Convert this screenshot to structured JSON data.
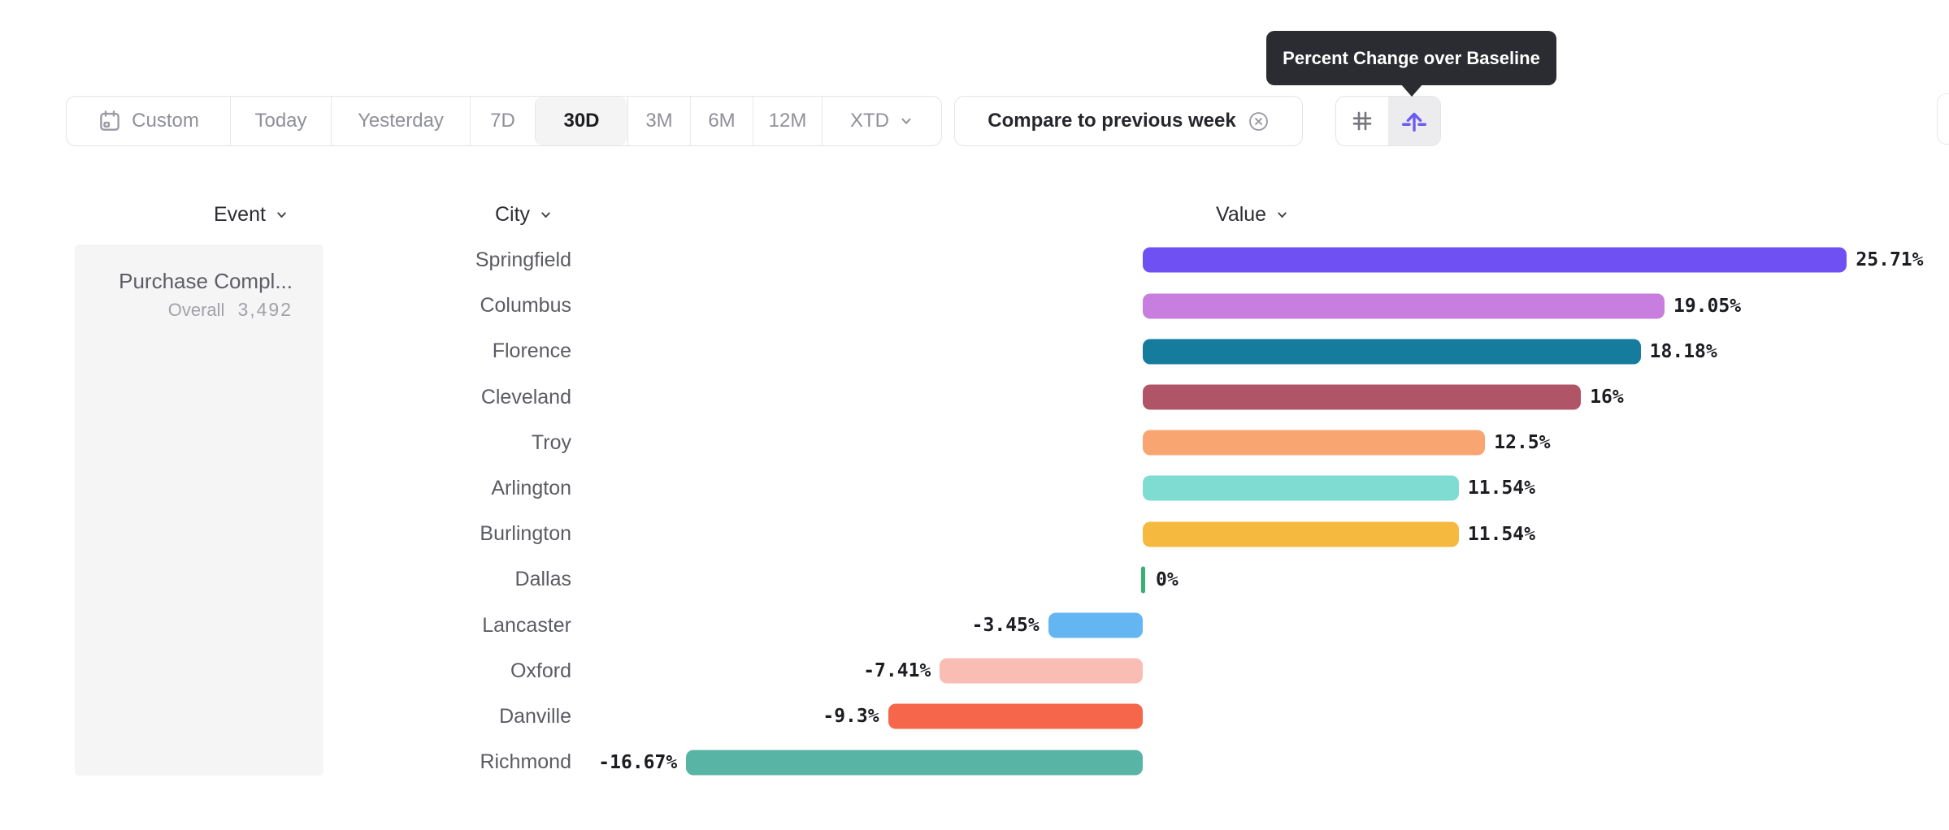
{
  "tooltip": {
    "text": "Percent Change over Baseline"
  },
  "toolbar": {
    "date_ranges": [
      {
        "label": "Custom",
        "active": false
      },
      {
        "label": "Today",
        "active": false
      },
      {
        "label": "Yesterday",
        "active": false
      },
      {
        "label": "7D",
        "active": false
      },
      {
        "label": "30D",
        "active": true
      },
      {
        "label": "3M",
        "active": false
      },
      {
        "label": "6M",
        "active": false
      },
      {
        "label": "12M",
        "active": false
      },
      {
        "label": "XTD",
        "active": false
      }
    ],
    "compare_button": {
      "label": "Compare to previous week"
    },
    "view_toggle": {
      "options": [
        "grid-view",
        "percent-change-over-baseline"
      ],
      "active": "percent-change-over-baseline"
    }
  },
  "columns": {
    "event": "Event",
    "city": "City",
    "value": "Value"
  },
  "event_card": {
    "title": "Purchase Compl...",
    "overall_label": "Overall",
    "overall_value": "3,492"
  },
  "chart_data": {
    "type": "bar",
    "orientation": "horizontal",
    "title": "Percent Change over Baseline",
    "xlabel": "Value",
    "ylabel": "City",
    "baseline": 0,
    "unit": "%",
    "categories": [
      "Springfield",
      "Columbus",
      "Florence",
      "Cleveland",
      "Troy",
      "Arlington",
      "Burlington",
      "Dallas",
      "Lancaster",
      "Oxford",
      "Danville",
      "Richmond"
    ],
    "values": [
      25.71,
      19.05,
      18.18,
      16,
      12.5,
      11.54,
      11.54,
      0,
      -3.45,
      -7.41,
      -9.3,
      -16.67
    ],
    "value_labels": [
      "25.71%",
      "19.05%",
      "18.18%",
      "16%",
      "12.5%",
      "11.54%",
      "11.54%",
      "0%",
      "-3.45%",
      "-7.41%",
      "-9.3%",
      "-16.67%"
    ],
    "bar_colors": [
      "#6f51f3",
      "#c87ede",
      "#167c9e",
      "#b05467",
      "#f9a571",
      "#7fdcd2",
      "#f4b93e",
      "#36b173",
      "#63b6f1",
      "#f9bdb4",
      "#f5664a",
      "#58b4a4"
    ],
    "zero_tick_color": "#36b173"
  }
}
